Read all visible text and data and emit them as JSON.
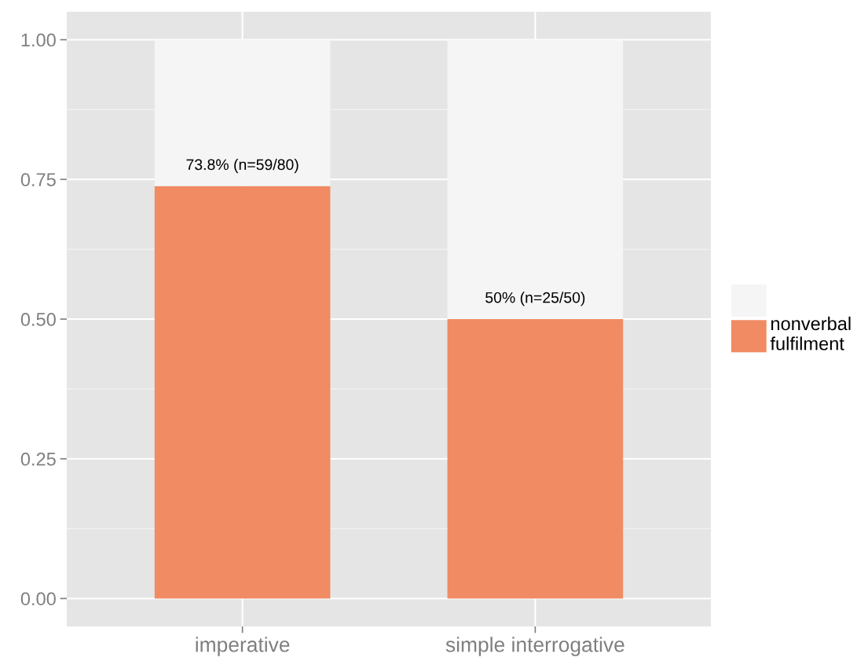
{
  "chart_data": {
    "type": "bar",
    "stacked": true,
    "categories": [
      "imperative",
      "simple interrogative"
    ],
    "series": [
      {
        "name": "nonverbal fulfilment",
        "color": "#f08b64",
        "values": [
          0.738,
          0.5
        ],
        "value_labels": [
          "73.8% (n=59/80)",
          "50% (n=25/50)"
        ]
      },
      {
        "color": "#f5f5f5",
        "values": [
          0.262,
          0.5
        ]
      }
    ],
    "ylim": [
      -0.05,
      1.05
    ],
    "yticks": [
      {
        "value": 0,
        "label": "0.00"
      },
      {
        "value": 0.25,
        "label": "0.25"
      },
      {
        "value": 0.5,
        "label": "0.50"
      },
      {
        "value": 0.75,
        "label": "0.75"
      },
      {
        "value": 1,
        "label": "1.00"
      }
    ],
    "grid": true,
    "legend": "right"
  }
}
